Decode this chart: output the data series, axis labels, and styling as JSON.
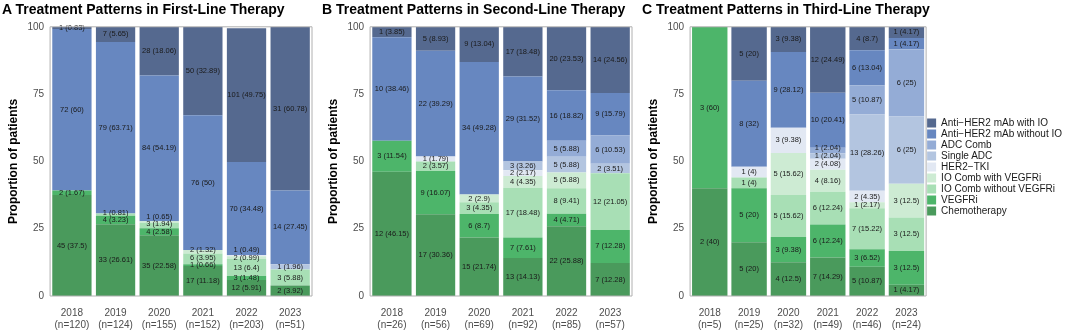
{
  "chart_data": [
    {
      "type": "bar",
      "stacked": true,
      "title": "A Treatment Patterns in First-Line Therapy",
      "ylabel": "Proportion of patients",
      "categories": [
        "2018\n(n=120)",
        "2019\n(n=124)",
        "2020\n(n=155)",
        "2021\n(n=152)",
        "2022\n(n=203)",
        "2023\n(n=51)"
      ],
      "ylim": [
        0,
        100
      ],
      "yticks": [
        0,
        25,
        50,
        75,
        100
      ],
      "grid": false,
      "legend": false,
      "series": [
        {
          "color": "#4a9a5c",
          "values": [
            37.5,
            26.61,
            22.58,
            11.18,
            5.91,
            3.92
          ],
          "value_labels": [
            "45 (37.5)",
            "33 (26.61)",
            "35 (22.58)",
            "17 (11.18)",
            "12 (5.91)",
            "2 (3.92)"
          ]
        },
        {
          "color": "#4db56a",
          "values": [
            1.67,
            3.23,
            2.58,
            0.66,
            1.48,
            null
          ],
          "value_labels": [
            "2 (1.67)",
            "4 (3.23)",
            "4 (2.58)",
            "1 (0.66)",
            "3 (1.48)",
            null
          ]
        },
        {
          "color": "#a8dfb5",
          "values": [
            null,
            0.81,
            1.94,
            3.95,
            6.4,
            5.88
          ],
          "value_labels": [
            null,
            "1 (0.81)",
            "3 (1.94)",
            "6 (3.95)",
            "13 (6.4)",
            "3 (5.88)"
          ]
        },
        {
          "color": "#cdebd3",
          "values": [
            null,
            null,
            0.65,
            1.32,
            0.99,
            null
          ],
          "value_labels": [
            null,
            null,
            "1 (0.65)",
            "2 (1.32)",
            "2 (0.99)",
            null
          ]
        },
        {
          "color": "#e2e8f3",
          "values": [
            null,
            null,
            null,
            null,
            0.49,
            null
          ],
          "value_labels": [
            null,
            null,
            null,
            null,
            "1 (0.49)",
            null
          ]
        },
        {
          "color": "#b3c5e0",
          "values": [
            null,
            null,
            null,
            null,
            null,
            1.96
          ],
          "value_labels": [
            null,
            null,
            null,
            null,
            null,
            "1 (1.96)"
          ]
        },
        {
          "color": "#94acd6",
          "values": [
            null,
            null,
            null,
            null,
            null,
            null
          ],
          "value_labels": [
            null,
            null,
            null,
            null,
            null,
            null
          ]
        },
        {
          "color": "#6787c0",
          "values": [
            60,
            63.71,
            54.19,
            50,
            34.48,
            27.45
          ],
          "value_labels": [
            "72 (60)",
            "79 (63.71)",
            "84 (54.19)",
            "76 (50)",
            "70 (34.48)",
            "14 (27.45)"
          ]
        },
        {
          "color": "#55698f",
          "values": [
            0.83,
            5.65,
            18.06,
            32.89,
            49.75,
            60.78
          ],
          "value_labels": [
            "1 (0.83)",
            "7 (5.65)",
            "28 (18.06)",
            "50 (32.89)",
            "101 (49.75)",
            "31 (60.78)"
          ]
        }
      ]
    },
    {
      "type": "bar",
      "stacked": true,
      "title": "B Treatment Patterns in Second-Line Therapy",
      "ylabel": "Proportion of patients",
      "categories": [
        "2018\n(n=26)",
        "2019\n(n=56)",
        "2020\n(n=69)",
        "2021\n(n=92)",
        "2022\n(n=85)",
        "2023\n(n=57)"
      ],
      "ylim": [
        0,
        100
      ],
      "yticks": [
        0,
        25,
        50,
        75,
        100
      ],
      "grid": false,
      "legend": false,
      "series": [
        {
          "color": "#4a9a5c",
          "values": [
            46.15,
            30.36,
            21.74,
            14.13,
            25.88,
            12.28
          ],
          "value_labels": [
            "12 (46.15)",
            "17 (30.36)",
            "15 (21.74)",
            "13 (14.13)",
            "22 (25.88)",
            "7 (12.28)"
          ]
        },
        {
          "color": "#4db56a",
          "values": [
            11.54,
            16.07,
            8.7,
            7.61,
            4.71,
            12.28
          ],
          "value_labels": [
            "3 (11.54)",
            "9 (16.07)",
            "6 (8.7)",
            "7 (7.61)",
            "4 (4.71)",
            "7 (12.28)"
          ]
        },
        {
          "color": "#a8dfb5",
          "values": [
            null,
            3.57,
            4.35,
            18.48,
            9.41,
            21.05
          ],
          "value_labels": [
            null,
            "2 (3.57)",
            "3 (4.35)",
            "17 (18.48)",
            "8 (9.41)",
            "12 (21.05)"
          ]
        },
        {
          "color": "#cdebd3",
          "values": [
            null,
            null,
            2.9,
            4.35,
            5.88,
            null
          ],
          "value_labels": [
            null,
            null,
            "2 (2.9)",
            "4 (4.35)",
            "5 (5.88)",
            null
          ]
        },
        {
          "color": "#e2e8f3",
          "values": [
            null,
            1.79,
            null,
            2.17,
            null,
            null
          ],
          "value_labels": [
            null,
            "1 (1.79)",
            null,
            "2 (2.17)",
            null,
            null
          ]
        },
        {
          "color": "#b3c5e0",
          "values": [
            null,
            null,
            null,
            3.26,
            5.88,
            3.51
          ],
          "value_labels": [
            null,
            null,
            null,
            "3 (3.26)",
            "5 (5.88)",
            "2 (3.51)"
          ]
        },
        {
          "color": "#94acd6",
          "values": [
            null,
            null,
            null,
            null,
            5.88,
            10.53
          ],
          "value_labels": [
            null,
            null,
            null,
            null,
            "5 (5.88)",
            "6 (10.53)"
          ]
        },
        {
          "color": "#6787c0",
          "values": [
            38.46,
            39.29,
            49.28,
            31.52,
            18.82,
            15.79
          ],
          "value_labels": [
            "10 (38.46)",
            "22 (39.29)",
            "34 (49.28)",
            "29 (31.52)",
            "16 (18.82)",
            "9 (15.79)"
          ]
        },
        {
          "color": "#55698f",
          "values": [
            3.85,
            8.93,
            13.04,
            18.48,
            23.53,
            24.56
          ],
          "value_labels": [
            "1 (3.85)",
            "5 (8.93)",
            "9 (13.04)",
            "17 (18.48)",
            "20 (23.53)",
            "14 (24.56)"
          ]
        }
      ]
    },
    {
      "type": "bar",
      "stacked": true,
      "title": "C Treatment Patterns in Third-Line Therapy",
      "ylabel": "Proportion of patients",
      "categories": [
        "2018\n(n=5)",
        "2019\n(n=25)",
        "2020\n(n=32)",
        "2021\n(n=49)",
        "2022\n(n=46)",
        "2023\n(n=24)"
      ],
      "ylim": [
        0,
        100
      ],
      "yticks": [
        0,
        25,
        50,
        75,
        100
      ],
      "grid": false,
      "legend": "right",
      "series": [
        {
          "name": "Chemotherapy",
          "color": "#4a9a5c",
          "values": [
            40,
            20,
            12.5,
            14.29,
            10.87,
            4.17
          ],
          "value_labels": [
            "2 (40)",
            "5 (20)",
            "4 (12.5)",
            "7 (14.29)",
            "5 (10.87)",
            "1 (4.17)"
          ]
        },
        {
          "name": "VEGFRi",
          "color": "#4db56a",
          "values": [
            60,
            20,
            9.38,
            12.24,
            6.52,
            12.5
          ],
          "value_labels": [
            "3 (60)",
            "5 (20)",
            "3 (9.38)",
            "6 (12.24)",
            "3 (6.52)",
            "3 (12.5)"
          ]
        },
        {
          "name": "IO Comb without VEGFRi",
          "color": "#a8dfb5",
          "values": [
            null,
            4,
            15.62,
            12.24,
            15.22,
            12.5
          ],
          "value_labels": [
            null,
            "1 (4)",
            "5 (15.62)",
            "6 (12.24)",
            "7 (15.22)",
            "3 (12.5)"
          ]
        },
        {
          "name": "IO Comb with VEGFRi",
          "color": "#cdebd3",
          "values": [
            null,
            null,
            15.62,
            8.16,
            2.17,
            12.5
          ],
          "value_labels": [
            null,
            null,
            "5 (15.62)",
            "4 (8.16)",
            "1 (2.17)",
            "3 (12.5)"
          ]
        },
        {
          "name": "HER2−TKI",
          "color": "#e2e8f3",
          "values": [
            null,
            4,
            9.38,
            4.08,
            4.35,
            null
          ],
          "value_labels": [
            null,
            "1 (4)",
            "3 (9.38)",
            "2 (4.08)",
            "2 (4.35)",
            null
          ]
        },
        {
          "name": "Single ADC",
          "color": "#b3c5e0",
          "values": [
            null,
            null,
            null,
            2.04,
            28.26,
            25
          ],
          "value_labels": [
            null,
            null,
            null,
            "1 (2.04)",
            "13 (28.26)",
            "6 (25)"
          ]
        },
        {
          "name": "ADC Comb",
          "color": "#94acd6",
          "values": [
            null,
            null,
            null,
            2.04,
            10.87,
            25
          ],
          "value_labels": [
            null,
            null,
            null,
            "1 (2.04)",
            "5 (10.87)",
            "6 (25)"
          ]
        },
        {
          "name": "Anti−HER2 mAb without IO",
          "color": "#6787c0",
          "values": [
            null,
            32,
            28.12,
            20.41,
            13.04,
            4.17
          ],
          "value_labels": [
            null,
            "8 (32)",
            "9 (28.12)",
            "10 (20.41)",
            "6 (13.04)",
            "1 (4.17)"
          ]
        },
        {
          "name": "Anti−HER2 mAb with IO",
          "color": "#55698f",
          "values": [
            null,
            20,
            9.38,
            24.49,
            8.7,
            4.17
          ],
          "value_labels": [
            null,
            "5 (20)",
            "3 (9.38)",
            "12 (24.49)",
            "4 (8.7)",
            "1 (4.17)"
          ]
        }
      ]
    }
  ]
}
